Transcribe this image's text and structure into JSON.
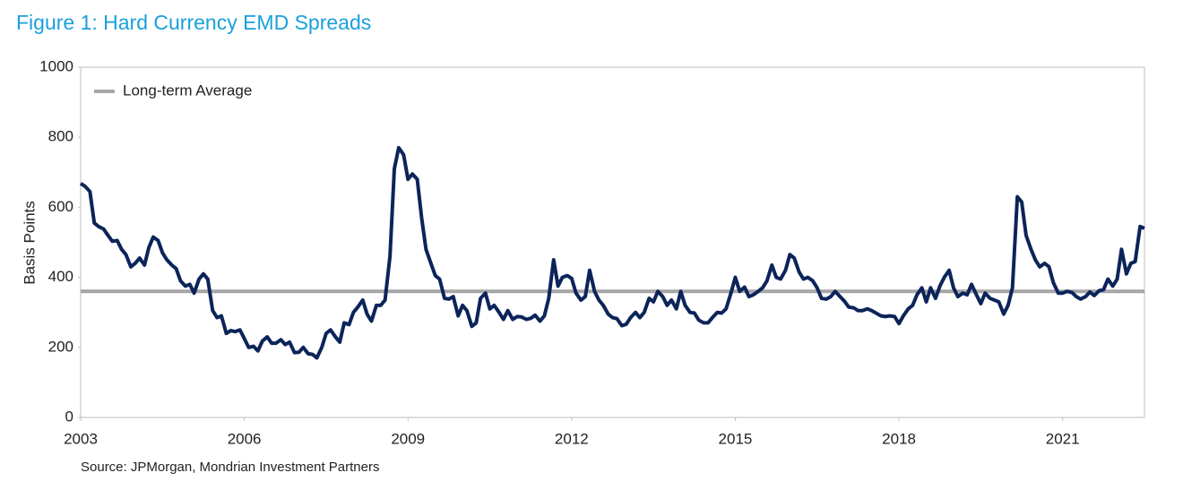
{
  "chart_data": {
    "type": "line",
    "title": "Figure 1:  Hard Currency EMD Spreads",
    "y_label": "Basis Points",
    "source": "Source: JPMorgan, Mondrian Investment Partners",
    "xlim": [
      2003,
      2022.5
    ],
    "xticks": [
      2003,
      2006,
      2009,
      2012,
      2015,
      2018,
      2021
    ],
    "ylim": [
      0,
      1000
    ],
    "yticks": [
      0,
      200,
      400,
      600,
      800,
      1000
    ],
    "grid": false,
    "legend": "upper left",
    "reference_line": {
      "name": "Long-term Average",
      "value": 360,
      "color": "#a6a6a6"
    },
    "x": [
      2003.0,
      2003.08,
      2003.17,
      2003.25,
      2003.33,
      2003.42,
      2003.5,
      2003.58,
      2003.67,
      2003.75,
      2003.83,
      2003.92,
      2004.0,
      2004.08,
      2004.17,
      2004.25,
      2004.33,
      2004.42,
      2004.5,
      2004.58,
      2004.67,
      2004.75,
      2004.83,
      2004.92,
      2005.0,
      2005.08,
      2005.17,
      2005.25,
      2005.33,
      2005.42,
      2005.5,
      2005.58,
      2005.67,
      2005.75,
      2005.83,
      2005.92,
      2006.0,
      2006.08,
      2006.17,
      2006.25,
      2006.33,
      2006.42,
      2006.5,
      2006.58,
      2006.67,
      2006.75,
      2006.83,
      2006.92,
      2007.0,
      2007.08,
      2007.17,
      2007.25,
      2007.33,
      2007.42,
      2007.5,
      2007.58,
      2007.67,
      2007.75,
      2007.83,
      2007.92,
      2008.0,
      2008.08,
      2008.17,
      2008.25,
      2008.33,
      2008.42,
      2008.5,
      2008.58,
      2008.67,
      2008.75,
      2008.83,
      2008.92,
      2009.0,
      2009.08,
      2009.17,
      2009.25,
      2009.33,
      2009.42,
      2009.5,
      2009.58,
      2009.67,
      2009.75,
      2009.83,
      2009.92,
      2010.0,
      2010.08,
      2010.17,
      2010.25,
      2010.33,
      2010.42,
      2010.5,
      2010.58,
      2010.67,
      2010.75,
      2010.83,
      2010.92,
      2011.0,
      2011.08,
      2011.17,
      2011.25,
      2011.33,
      2011.42,
      2011.5,
      2011.58,
      2011.67,
      2011.75,
      2011.83,
      2011.92,
      2012.0,
      2012.08,
      2012.17,
      2012.25,
      2012.33,
      2012.42,
      2012.5,
      2012.58,
      2012.67,
      2012.75,
      2012.83,
      2012.92,
      2013.0,
      2013.08,
      2013.17,
      2013.25,
      2013.33,
      2013.42,
      2013.5,
      2013.58,
      2013.67,
      2013.75,
      2013.83,
      2013.92,
      2014.0,
      2014.08,
      2014.17,
      2014.25,
      2014.33,
      2014.42,
      2014.5,
      2014.58,
      2014.67,
      2014.75,
      2014.83,
      2014.92,
      2015.0,
      2015.08,
      2015.17,
      2015.25,
      2015.33,
      2015.42,
      2015.5,
      2015.58,
      2015.67,
      2015.75,
      2015.83,
      2015.92,
      2016.0,
      2016.08,
      2016.17,
      2016.25,
      2016.33,
      2016.42,
      2016.5,
      2016.58,
      2016.67,
      2016.75,
      2016.83,
      2016.92,
      2017.0,
      2017.08,
      2017.17,
      2017.25,
      2017.33,
      2017.42,
      2017.5,
      2017.58,
      2017.67,
      2017.75,
      2017.83,
      2017.92,
      2018.0,
      2018.08,
      2018.17,
      2018.25,
      2018.33,
      2018.42,
      2018.5,
      2018.58,
      2018.67,
      2018.75,
      2018.83,
      2018.92,
      2019.0,
      2019.08,
      2019.17,
      2019.25,
      2019.33,
      2019.42,
      2019.5,
      2019.58,
      2019.67,
      2019.75,
      2019.83,
      2019.92,
      2020.0,
      2020.08,
      2020.17,
      2020.25,
      2020.33,
      2020.42,
      2020.5,
      2020.58,
      2020.67,
      2020.75,
      2020.83,
      2020.92,
      2021.0,
      2021.08,
      2021.17,
      2021.25,
      2021.33,
      2021.42,
      2021.5,
      2021.58,
      2021.67,
      2021.75,
      2021.83,
      2021.92,
      2022.0,
      2022.08,
      2022.17,
      2022.25,
      2022.33,
      2022.42,
      2022.5
    ],
    "series": [
      {
        "color": "#0c2459",
        "values": [
          668,
          660,
          645,
          555,
          545,
          538,
          520,
          503,
          505,
          480,
          465,
          430,
          440,
          455,
          435,
          485,
          515,
          505,
          470,
          450,
          435,
          425,
          390,
          375,
          380,
          355,
          395,
          410,
          395,
          305,
          285,
          290,
          240,
          248,
          245,
          250,
          225,
          200,
          203,
          190,
          218,
          230,
          212,
          212,
          222,
          208,
          215,
          185,
          186,
          200,
          182,
          180,
          170,
          200,
          240,
          250,
          230,
          215,
          270,
          265,
          300,
          315,
          335,
          295,
          275,
          320,
          320,
          335,
          460,
          710,
          770,
          750,
          680,
          695,
          680,
          570,
          480,
          440,
          405,
          395,
          340,
          338,
          345,
          290,
          320,
          305,
          260,
          270,
          340,
          355,
          310,
          320,
          300,
          280,
          305,
          280,
          288,
          287,
          280,
          283,
          292,
          275,
          290,
          340,
          450,
          375,
          400,
          405,
          397,
          355,
          335,
          345,
          420,
          360,
          335,
          320,
          295,
          285,
          282,
          262,
          266,
          285,
          300,
          285,
          300,
          340,
          330,
          360,
          345,
          320,
          335,
          310,
          360,
          320,
          300,
          298,
          278,
          270,
          270,
          285,
          300,
          298,
          310,
          355,
          400,
          360,
          372,
          345,
          350,
          360,
          370,
          390,
          435,
          400,
          395,
          420,
          465,
          455,
          415,
          395,
          400,
          390,
          370,
          340,
          338,
          345,
          360,
          345,
          332,
          315,
          313,
          305,
          305,
          310,
          305,
          298,
          290,
          288,
          290,
          288,
          268,
          290,
          310,
          320,
          350,
          370,
          330,
          370,
          340,
          375,
          400,
          420,
          370,
          345,
          355,
          350,
          380,
          350,
          325,
          355,
          340,
          335,
          330,
          295,
          320,
          370,
          630,
          615,
          520,
          480,
          450,
          430,
          440,
          430,
          385,
          355,
          355,
          360,
          357,
          345,
          338,
          345,
          358,
          348,
          362,
          365,
          395,
          375,
          395,
          480,
          410,
          440,
          445,
          545,
          540
        ]
      }
    ]
  }
}
